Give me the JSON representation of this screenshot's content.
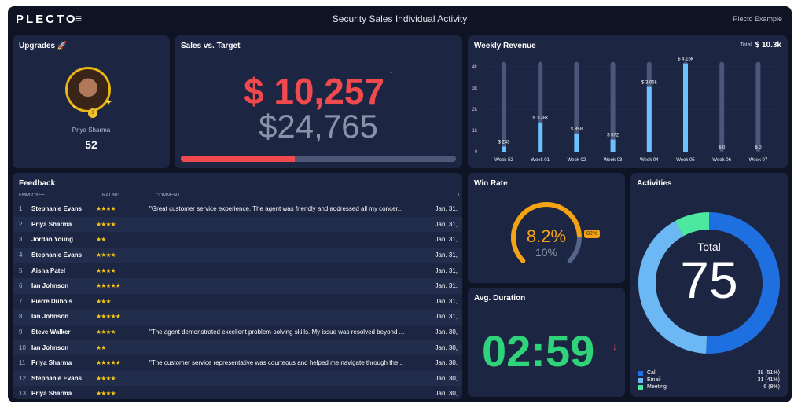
{
  "header": {
    "logo": "PLECTO",
    "menu_icon": "hamburger-icon",
    "title": "Security Sales Individual Activity",
    "account": "Plecto Example"
  },
  "upgrades": {
    "title": "Upgrades 🚀",
    "name": "Priya Sharma",
    "value": "52",
    "rank": "1"
  },
  "sales": {
    "title": "Sales vs. Target",
    "value": "$ 10,257",
    "target": "$24,765",
    "trend": "↑",
    "progress": 0.414,
    "colors": {
      "value": "#f04a4f",
      "target": "#8a92a8"
    }
  },
  "weekly": {
    "title": "Weekly Revenue",
    "total_label": "Total",
    "total": "$ 10.3k"
  },
  "chart_data": {
    "type": "bar",
    "title": "Weekly Revenue",
    "categories": [
      "Week 52",
      "Week 01",
      "Week 02",
      "Week 03",
      "Week 04",
      "Week 05",
      "Week 06",
      "Week 07"
    ],
    "values": [
      243,
      1380,
      858,
      572,
      3050,
      4160,
      0,
      0
    ],
    "labels": [
      "$ 243",
      "$ 1.38k",
      "$ 858",
      "$ 572",
      "$ 3.05k",
      "$ 4.16k",
      "$ 0",
      "$ 0"
    ],
    "yticks": [
      "0",
      "1k",
      "2k",
      "3k",
      "4k"
    ],
    "ylim": [
      0,
      4160
    ]
  },
  "feedback": {
    "title": "Feedback",
    "columns": [
      "EMPLOYEE",
      "RATING",
      "COMMENT",
      "I"
    ],
    "rows": [
      {
        "n": "1",
        "emp": "Stephanie Evans",
        "rating": "★★★★",
        "comment": "\"Great customer service experience. The agent was friendly and addressed all my concer...",
        "date": "Jan. 31,"
      },
      {
        "n": "2",
        "emp": "Priya Sharma",
        "rating": "★★★★",
        "comment": "",
        "date": "Jan. 31,"
      },
      {
        "n": "3",
        "emp": "Jordan Young",
        "rating": "★★",
        "comment": "",
        "date": "Jan. 31,"
      },
      {
        "n": "4",
        "emp": "Stephanie Evans",
        "rating": "★★★★",
        "comment": "",
        "date": "Jan. 31,"
      },
      {
        "n": "5",
        "emp": "Aisha Patel",
        "rating": "★★★★",
        "comment": "",
        "date": "Jan. 31,"
      },
      {
        "n": "6",
        "emp": "Ian Johnson",
        "rating": "★★★★★",
        "comment": "",
        "date": "Jan. 31,"
      },
      {
        "n": "7",
        "emp": "Pierre Dubois",
        "rating": "★★★",
        "comment": "",
        "date": "Jan. 31,"
      },
      {
        "n": "8",
        "emp": "Ian Johnson",
        "rating": "★★★★★",
        "comment": "",
        "date": "Jan. 31,"
      },
      {
        "n": "9",
        "emp": "Steve Walker",
        "rating": "★★★★",
        "comment": "\"The agent demonstrated excellent problem-solving skills. My issue was resolved beyond ...",
        "date": "Jan. 30,"
      },
      {
        "n": "10",
        "emp": "Ian Johnson",
        "rating": "★★",
        "comment": "",
        "date": "Jan. 30,"
      },
      {
        "n": "11",
        "emp": "Priya Sharma",
        "rating": "★★★★★",
        "comment": "\"The customer service representative was courteous and helped me navigate through the...",
        "date": "Jan. 30,"
      },
      {
        "n": "12",
        "emp": "Stephanie Evans",
        "rating": "★★★★",
        "comment": "",
        "date": "Jan. 30,"
      },
      {
        "n": "13",
        "emp": "Priya Sharma",
        "rating": "★★★★",
        "comment": "",
        "date": "Jan. 30,"
      }
    ]
  },
  "winrate": {
    "title": "Win Rate",
    "value": "8.2%",
    "target": "10%",
    "badge": "82%",
    "fraction": 0.82
  },
  "duration": {
    "title": "Avg. Duration",
    "value": "02:59",
    "trend": "↓"
  },
  "activities": {
    "title": "Activities",
    "total_label": "Total",
    "total": "75",
    "items": [
      {
        "label": "Call",
        "value": "38 (51%)",
        "count": 38,
        "color": "#1e6fe0"
      },
      {
        "label": "Email",
        "value": "31 (41%)",
        "count": 31,
        "color": "#6cb8f5"
      },
      {
        "label": "Meeting",
        "value": "6 (8%)",
        "count": 6,
        "color": "#4de8a0"
      }
    ]
  }
}
